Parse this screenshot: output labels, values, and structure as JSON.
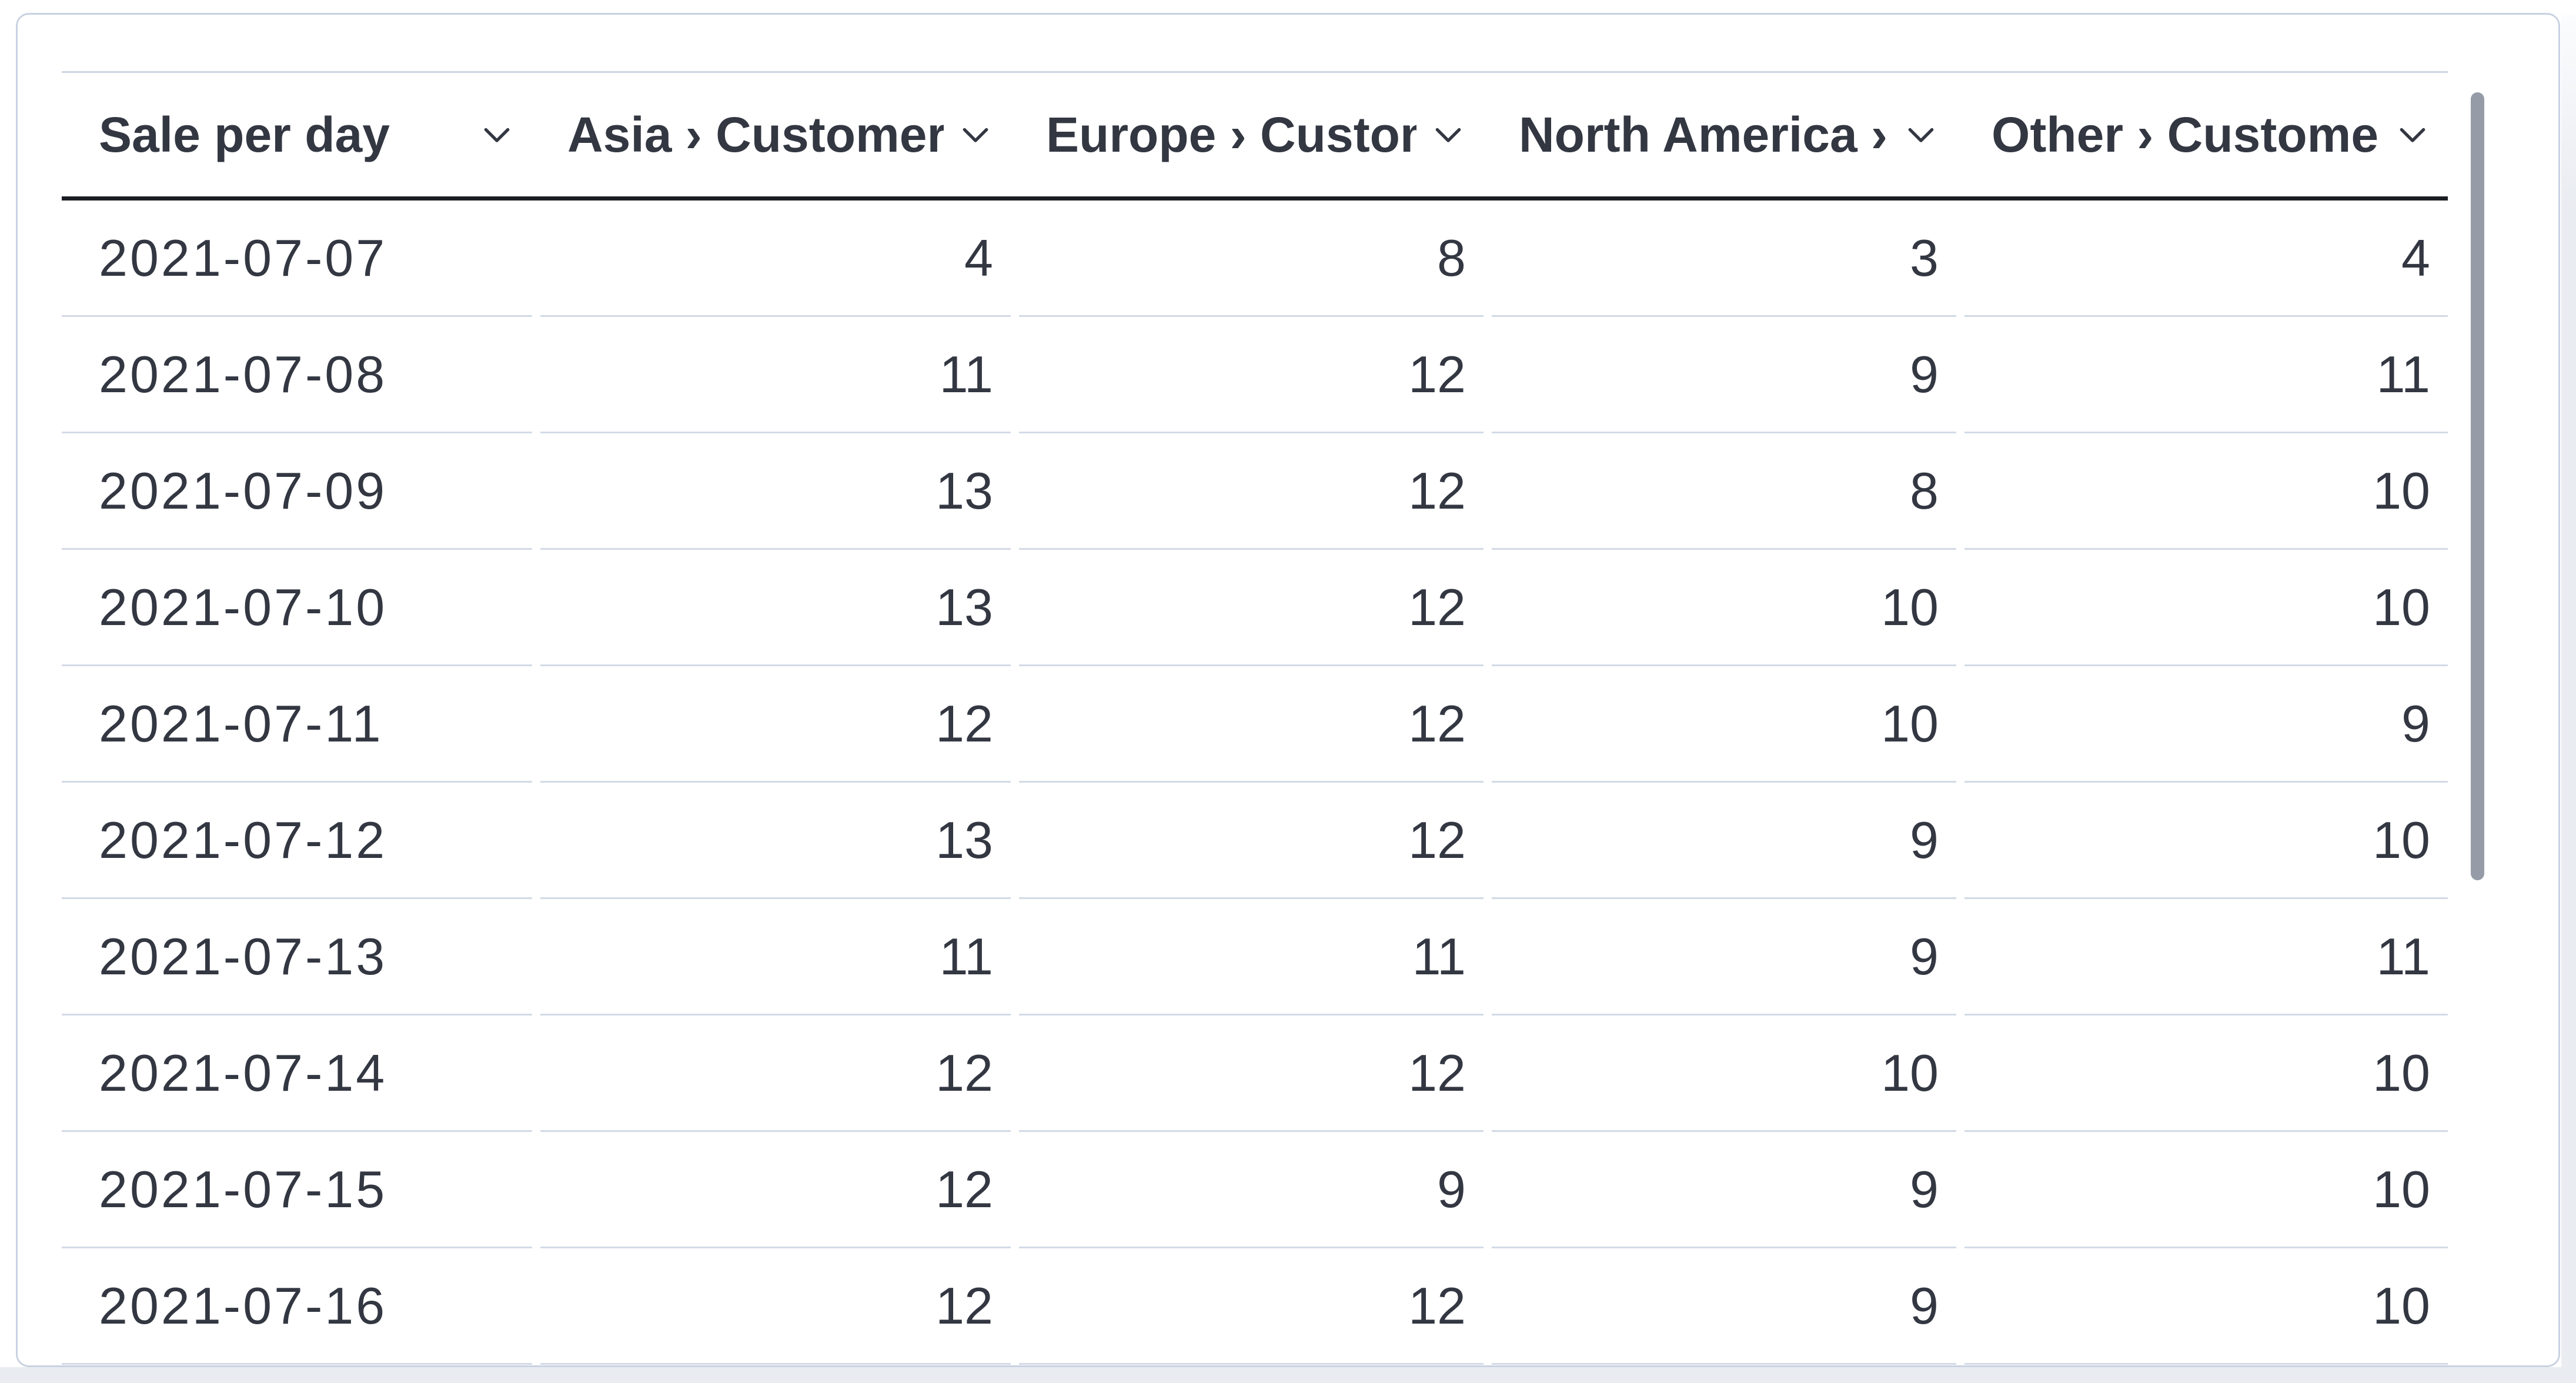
{
  "panel": {
    "kind": "data-table-visualization",
    "scrollbar": {
      "orientation": "vertical",
      "thumb_visible": true
    }
  },
  "table": {
    "columns": [
      {
        "id": "date",
        "label": "Sale per day",
        "align": "left",
        "icon": "chevron-down-icon"
      },
      {
        "id": "asia",
        "label": "Asia › Customers",
        "align": "right",
        "icon": "chevron-down-icon"
      },
      {
        "id": "europe",
        "label": "Europe › Customers",
        "align": "right",
        "icon": "chevron-down-icon"
      },
      {
        "id": "north-america",
        "label": "North America › Customers",
        "align": "right",
        "icon": "chevron-down-icon"
      },
      {
        "id": "other",
        "label": "Other › Customers",
        "align": "right",
        "icon": "chevron-down-icon"
      }
    ],
    "rows": [
      {
        "date": "2021-07-07",
        "values": [
          4,
          8,
          3,
          4
        ]
      },
      {
        "date": "2021-07-08",
        "values": [
          11,
          12,
          9,
          11
        ]
      },
      {
        "date": "2021-07-09",
        "values": [
          13,
          12,
          8,
          10
        ]
      },
      {
        "date": "2021-07-10",
        "values": [
          13,
          12,
          10,
          10
        ]
      },
      {
        "date": "2021-07-11",
        "values": [
          12,
          12,
          10,
          9
        ]
      },
      {
        "date": "2021-07-12",
        "values": [
          13,
          12,
          9,
          10
        ]
      },
      {
        "date": "2021-07-13",
        "values": [
          11,
          11,
          9,
          11
        ]
      },
      {
        "date": "2021-07-14",
        "values": [
          12,
          12,
          10,
          10
        ]
      },
      {
        "date": "2021-07-15",
        "values": [
          12,
          9,
          9,
          10
        ]
      },
      {
        "date": "2021-07-16",
        "values": [
          12,
          12,
          9,
          10
        ]
      }
    ]
  },
  "chart_data": {
    "type": "table",
    "title": "Sale per day",
    "categories": [
      "2021-07-07",
      "2021-07-08",
      "2021-07-09",
      "2021-07-10",
      "2021-07-11",
      "2021-07-12",
      "2021-07-13",
      "2021-07-14",
      "2021-07-15",
      "2021-07-16"
    ],
    "series": [
      {
        "name": "Asia › Customers",
        "values": [
          4,
          11,
          13,
          13,
          12,
          13,
          11,
          12,
          12,
          12
        ]
      },
      {
        "name": "Europe › Customers",
        "values": [
          8,
          12,
          12,
          12,
          12,
          12,
          11,
          12,
          9,
          12
        ]
      },
      {
        "name": "North America › Customers",
        "values": [
          3,
          9,
          8,
          10,
          10,
          9,
          9,
          10,
          9,
          9
        ]
      },
      {
        "name": "Other › Customers",
        "values": [
          4,
          11,
          10,
          10,
          9,
          10,
          11,
          10,
          10,
          10
        ]
      }
    ],
    "layout_hints": {
      "last_row_partially_clipped": true,
      "row_dividers": true,
      "header_rule": "thick-dark"
    }
  },
  "colors": {
    "text": "#333742",
    "header_rule": "#1b1d23",
    "row_divider": "#d3dae6",
    "header_top_rule": "#ccd5e3",
    "panel_border": "#c9d2e1",
    "scrollbar_thumb": "#959ca7",
    "outer_background": "#e9ecf1",
    "panel_background": "#ffffff"
  }
}
